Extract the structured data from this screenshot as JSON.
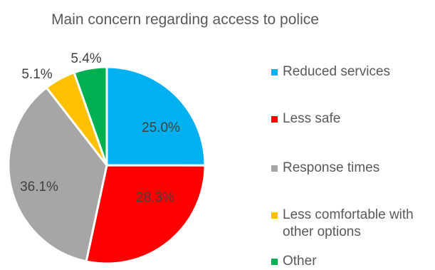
{
  "chart_data": {
    "type": "pie",
    "title": "Main concern regarding access to police",
    "categories": [
      "Reduced services",
      "Less safe",
      "Response times",
      "Less comfortable with other options",
      "Other"
    ],
    "values": [
      25.0,
      28.3,
      36.1,
      5.1,
      5.4
    ],
    "labels": [
      "25.0%",
      "28.3%",
      "36.1%",
      "5.1%",
      "5.4%"
    ],
    "colors": [
      "#00B0F0",
      "#FF0000",
      "#A6A6A6",
      "#FFC000",
      "#00B050"
    ],
    "legend_position": "right"
  }
}
